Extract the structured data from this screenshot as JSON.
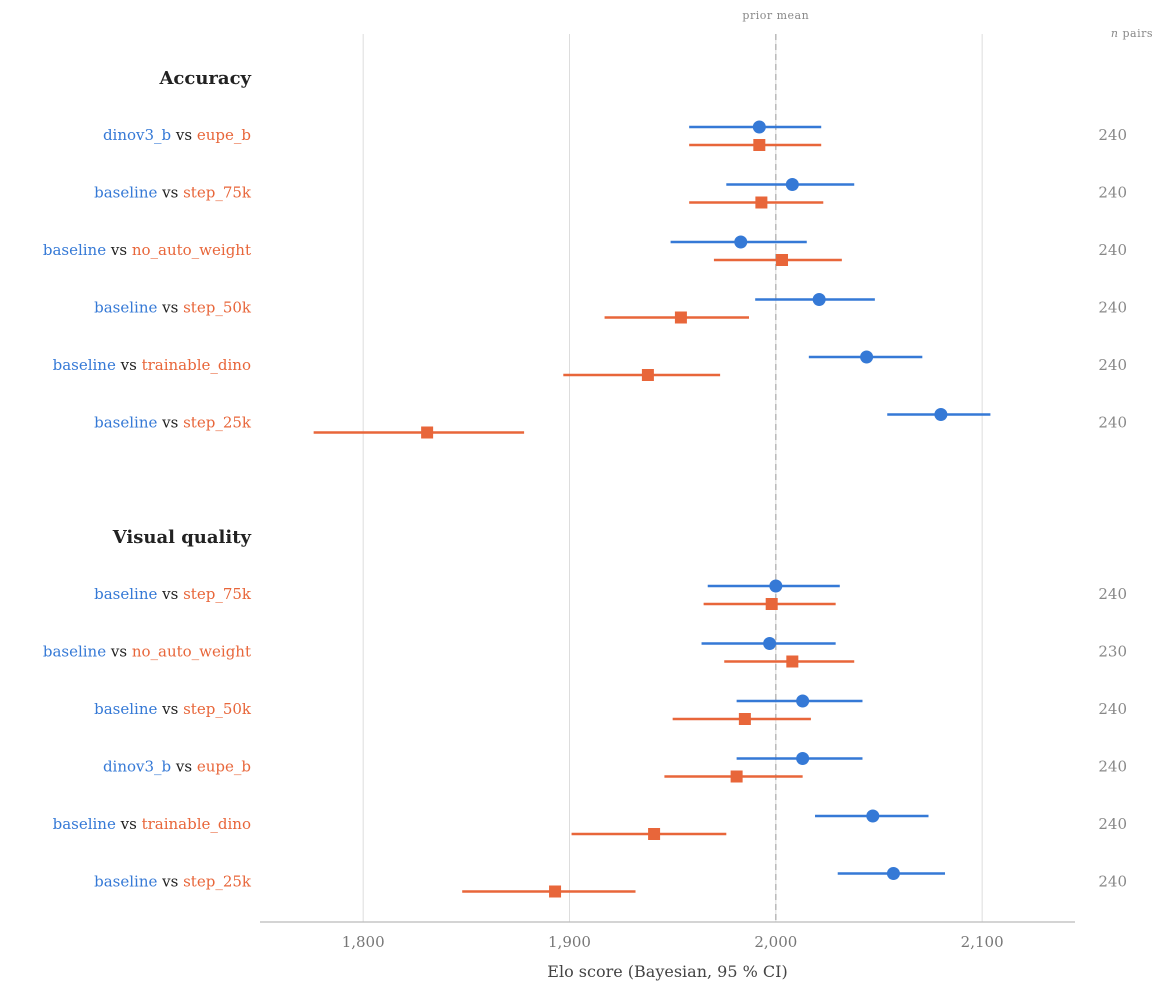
{
  "chart_data": {
    "type": "forest",
    "xlabel": "Elo score (Bayesian, 95 % CI)",
    "xlim": [
      1750,
      2145
    ],
    "xticks": [
      1800,
      1900,
      2000,
      2100
    ],
    "xtick_labels": [
      "1,800",
      "1,900",
      "2,000",
      "2,100"
    ],
    "grid": true,
    "prior_mean": 2000,
    "prior_mean_label": "prior mean",
    "n_header": "n pairs",
    "colors": {
      "left": "#3579d6",
      "right": "#e8663a",
      "vs": "#222222"
    },
    "groups": [
      {
        "title": "Accuracy",
        "rows": [
          {
            "left": "dinov3_b",
            "vs": "vs",
            "right": "eupe_b",
            "n": "240",
            "left_est": 1992,
            "left_ci": [
              1958,
              2022
            ],
            "right_est": 1992,
            "right_ci": [
              1958,
              2022
            ]
          },
          {
            "left": "baseline",
            "vs": "vs",
            "right": "step_75k",
            "n": "240",
            "left_est": 2008,
            "left_ci": [
              1976,
              2038
            ],
            "right_est": 1993,
            "right_ci": [
              1958,
              2023
            ]
          },
          {
            "left": "baseline",
            "vs": "vs",
            "right": "no_auto_weight",
            "n": "240",
            "left_est": 1983,
            "left_ci": [
              1949,
              2015
            ],
            "right_est": 2003,
            "right_ci": [
              1970,
              2032
            ]
          },
          {
            "left": "baseline",
            "vs": "vs",
            "right": "step_50k",
            "n": "240",
            "left_est": 2021,
            "left_ci": [
              1990,
              2048
            ],
            "right_est": 1954,
            "right_ci": [
              1917,
              1987
            ]
          },
          {
            "left": "baseline",
            "vs": "vs",
            "right": "trainable_dino",
            "n": "240",
            "left_est": 2044,
            "left_ci": [
              2016,
              2071
            ],
            "right_est": 1938,
            "right_ci": [
              1897,
              1973
            ]
          },
          {
            "left": "baseline",
            "vs": "vs",
            "right": "step_25k",
            "n": "240",
            "left_est": 2080,
            "left_ci": [
              2054,
              2104
            ],
            "right_est": 1831,
            "right_ci": [
              1776,
              1878
            ]
          }
        ]
      },
      {
        "title": "Visual quality",
        "rows": [
          {
            "left": "baseline",
            "vs": "vs",
            "right": "step_75k",
            "n": "240",
            "left_est": 2000,
            "left_ci": [
              1967,
              2031
            ],
            "right_est": 1998,
            "right_ci": [
              1965,
              2029
            ]
          },
          {
            "left": "baseline",
            "vs": "vs",
            "right": "no_auto_weight",
            "n": "230",
            "left_est": 1997,
            "left_ci": [
              1964,
              2029
            ],
            "right_est": 2008,
            "right_ci": [
              1975,
              2038
            ]
          },
          {
            "left": "baseline",
            "vs": "vs",
            "right": "step_50k",
            "n": "240",
            "left_est": 2013,
            "left_ci": [
              1981,
              2042
            ],
            "right_est": 1985,
            "right_ci": [
              1950,
              2017
            ]
          },
          {
            "left": "dinov3_b",
            "vs": "vs",
            "right": "eupe_b",
            "n": "240",
            "left_est": 2013,
            "left_ci": [
              1981,
              2042
            ],
            "right_est": 1981,
            "right_ci": [
              1946,
              2013
            ]
          },
          {
            "left": "baseline",
            "vs": "vs",
            "right": "trainable_dino",
            "n": "240",
            "left_est": 2047,
            "left_ci": [
              2019,
              2074
            ],
            "right_est": 1941,
            "right_ci": [
              1901,
              1976
            ]
          },
          {
            "left": "baseline",
            "vs": "vs",
            "right": "step_25k",
            "n": "240",
            "left_est": 2057,
            "left_ci": [
              2030,
              2082
            ],
            "right_est": 1893,
            "right_ci": [
              1848,
              1932
            ]
          }
        ]
      }
    ]
  }
}
